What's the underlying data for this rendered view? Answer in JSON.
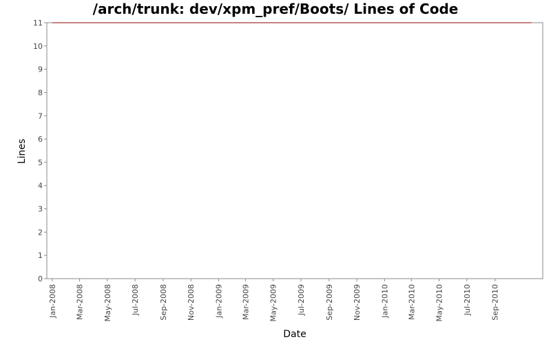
{
  "chart_data": {
    "type": "line",
    "title": "/arch/trunk: dev/xpm_pref/Boots/ Lines of Code",
    "xlabel": "Date",
    "ylabel": "Lines",
    "ylim": [
      0,
      11
    ],
    "yticks": [
      "0",
      "1",
      "2",
      "3",
      "4",
      "5",
      "6",
      "7",
      "8",
      "9",
      "10",
      "11"
    ],
    "xlim": [
      "2007-12-20",
      "2010-12-15"
    ],
    "xticks": [
      {
        "date": "2008-01-01",
        "label": "Jan-2008"
      },
      {
        "date": "2008-03-01",
        "label": "Mar-2008"
      },
      {
        "date": "2008-05-01",
        "label": "May-2008"
      },
      {
        "date": "2008-07-01",
        "label": "Jul-2008"
      },
      {
        "date": "2008-09-01",
        "label": "Sep-2008"
      },
      {
        "date": "2008-11-01",
        "label": "Nov-2008"
      },
      {
        "date": "2009-01-01",
        "label": "Jan-2009"
      },
      {
        "date": "2009-03-01",
        "label": "Mar-2009"
      },
      {
        "date": "2009-05-01",
        "label": "May-2009"
      },
      {
        "date": "2009-07-01",
        "label": "Jul-2009"
      },
      {
        "date": "2009-09-01",
        "label": "Sep-2009"
      },
      {
        "date": "2009-11-01",
        "label": "Nov-2009"
      },
      {
        "date": "2010-01-01",
        "label": "Jan-2010"
      },
      {
        "date": "2010-03-01",
        "label": "Mar-2010"
      },
      {
        "date": "2010-05-01",
        "label": "May-2010"
      },
      {
        "date": "2010-07-01",
        "label": "Jul-2010"
      },
      {
        "date": "2010-09-01",
        "label": "Sep-2010"
      }
    ],
    "series": [
      {
        "color": "#8b0000",
        "points": [
          {
            "x": "2008-01-01",
            "y": 11
          },
          {
            "x": "2010-11-20",
            "y": 11
          }
        ]
      }
    ],
    "grid": false,
    "legend": "none"
  }
}
